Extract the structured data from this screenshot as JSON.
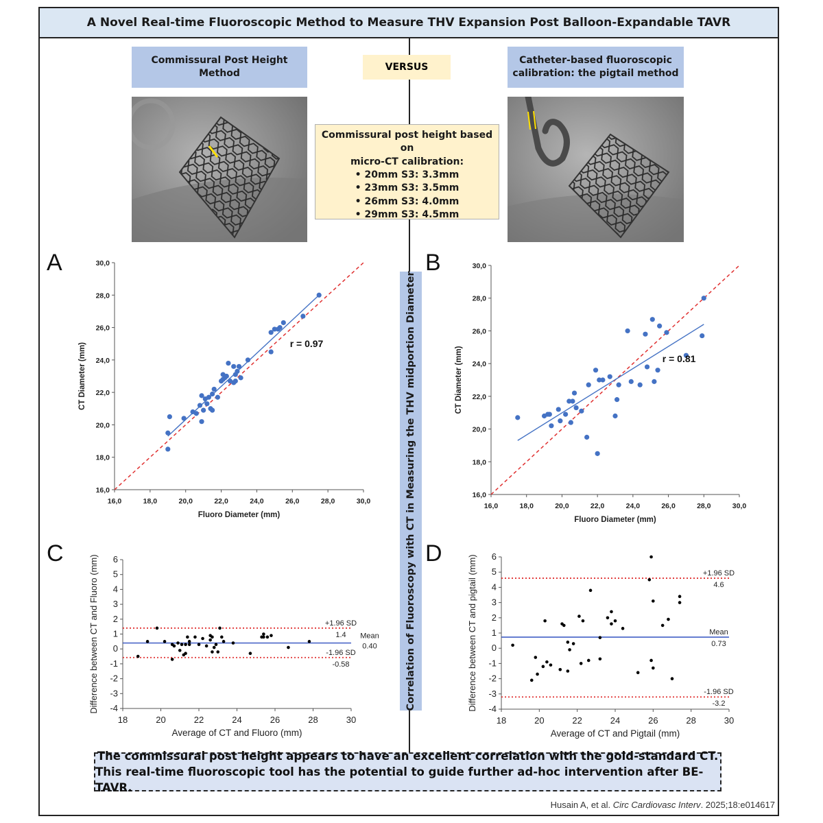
{
  "title": "A Novel Real-time Fluoroscopic Method to Measure THV Expansion Post Balloon-Expandable TAVR",
  "left_method": "Commissural Post Height Method",
  "versus": "VERSUS",
  "right_method": {
    "line1": "Catheter-based fluoroscopic",
    "line2": "calibration: the pigtail method"
  },
  "info_box": {
    "heading1": "Commissural post height based on",
    "heading2": "micro-CT calibration:",
    "items": [
      "• 20mm S3: 3.3mm",
      "• 23mm S3: 3.5mm",
      "• 26mm S3: 4.0mm",
      "• 29mm S3: 4.5mm"
    ]
  },
  "vertical_label": "Correlation of Fluoroscopy with CT in Measuring the THV midportion Diameter",
  "panel_letters": {
    "a": "A",
    "b": "B",
    "c": "C",
    "d": "D"
  },
  "conclusion": {
    "line1": "The commissural post height appears to have an excellent correlation with the gold-standard CT.",
    "line2": "This real-time fluoroscopic tool has the potential to guide further ad-hoc intervention after BE-TAVR."
  },
  "citation": {
    "authors": "Husain A, et al. ",
    "journal": "Circ Cardiovasc Interv",
    "rest": ". 2025;18:e014617"
  },
  "colors": {
    "point": "#4472c4",
    "fit": "#4472c4",
    "identity": "#e03030",
    "title_bg": "#dbe7f3",
    "method_bg": "#b4c7e7",
    "info_bg": "#fff2cc"
  },
  "chart_data": [
    {
      "id": "A",
      "type": "scatter",
      "xlabel": "Fluoro Diameter (mm)",
      "ylabel": "CT Diameter (mm)",
      "xlim": [
        16,
        30
      ],
      "ylim": [
        16,
        30
      ],
      "xticks": [
        "16,0",
        "18,0",
        "20,0",
        "22,0",
        "24,0",
        "26,0",
        "28,0",
        "30,0"
      ],
      "yticks": [
        "16,0",
        "18,0",
        "20,0",
        "22,0",
        "24,0",
        "26,0",
        "28,0",
        "30,0"
      ],
      "annotation": "r = 0.97",
      "fit_line": [
        [
          19.0,
          19.3
        ],
        [
          27.5,
          28.0
        ]
      ],
      "identity_line": true,
      "points": [
        [
          19.0,
          18.5
        ],
        [
          19.0,
          19.5
        ],
        [
          19.1,
          20.5
        ],
        [
          19.9,
          20.4
        ],
        [
          20.4,
          20.8
        ],
        [
          20.6,
          20.7
        ],
        [
          20.8,
          21.2
        ],
        [
          20.9,
          21.8
        ],
        [
          20.9,
          20.2
        ],
        [
          21.0,
          20.9
        ],
        [
          21.1,
          21.6
        ],
        [
          21.2,
          21.3
        ],
        [
          21.3,
          21.7
        ],
        [
          21.4,
          21.0
        ],
        [
          21.5,
          20.9
        ],
        [
          21.5,
          21.9
        ],
        [
          21.6,
          22.2
        ],
        [
          21.8,
          21.7
        ],
        [
          22.0,
          22.7
        ],
        [
          22.1,
          23.1
        ],
        [
          22.1,
          22.8
        ],
        [
          22.2,
          22.9
        ],
        [
          22.3,
          23.0
        ],
        [
          22.4,
          23.8
        ],
        [
          22.5,
          22.7
        ],
        [
          22.7,
          22.6
        ],
        [
          22.7,
          23.6
        ],
        [
          22.8,
          22.7
        ],
        [
          22.8,
          23.1
        ],
        [
          22.9,
          23.3
        ],
        [
          23.0,
          23.6
        ],
        [
          23.1,
          22.9
        ],
        [
          23.5,
          24.0
        ],
        [
          24.8,
          24.5
        ],
        [
          24.8,
          25.7
        ],
        [
          25.0,
          25.9
        ],
        [
          25.2,
          25.9
        ],
        [
          25.3,
          26.0
        ],
        [
          25.5,
          26.3
        ],
        [
          26.6,
          26.7
        ],
        [
          27.5,
          28.0
        ]
      ]
    },
    {
      "id": "B",
      "type": "scatter",
      "xlabel": "Fluoro Diameter (mm)",
      "ylabel": "CT Diameter (mm)",
      "xlim": [
        16,
        30
      ],
      "ylim": [
        16,
        30
      ],
      "xticks": [
        "16,0",
        "18,0",
        "20,0",
        "22,0",
        "24,0",
        "26,0",
        "28,0",
        "30,0"
      ],
      "yticks": [
        "16,0",
        "18,0",
        "20,0",
        "22,0",
        "24,0",
        "26,0",
        "28,0",
        "30,0"
      ],
      "annotation": "r = 0.81",
      "fit_line": [
        [
          17.5,
          19.3
        ],
        [
          28.0,
          26.4
        ]
      ],
      "identity_line": true,
      "points": [
        [
          17.5,
          20.7
        ],
        [
          19.0,
          20.8
        ],
        [
          19.2,
          20.9
        ],
        [
          19.3,
          20.9
        ],
        [
          19.4,
          20.2
        ],
        [
          19.8,
          21.2
        ],
        [
          19.9,
          20.5
        ],
        [
          20.2,
          20.9
        ],
        [
          20.4,
          21.7
        ],
        [
          20.5,
          20.4
        ],
        [
          20.6,
          21.7
        ],
        [
          20.7,
          22.2
        ],
        [
          20.8,
          21.3
        ],
        [
          21.1,
          21.1
        ],
        [
          21.4,
          19.5
        ],
        [
          21.5,
          22.7
        ],
        [
          21.9,
          23.6
        ],
        [
          22.0,
          18.5
        ],
        [
          22.1,
          23.0
        ],
        [
          22.3,
          23.0
        ],
        [
          22.7,
          23.2
        ],
        [
          23.0,
          20.8
        ],
        [
          23.1,
          21.8
        ],
        [
          23.2,
          22.7
        ],
        [
          23.7,
          26.0
        ],
        [
          23.9,
          22.9
        ],
        [
          24.4,
          22.7
        ],
        [
          24.7,
          25.8
        ],
        [
          24.8,
          23.8
        ],
        [
          25.1,
          26.7
        ],
        [
          25.2,
          22.9
        ],
        [
          25.4,
          23.6
        ],
        [
          25.5,
          26.3
        ],
        [
          25.9,
          25.9
        ],
        [
          27.0,
          24.5
        ],
        [
          27.9,
          25.7
        ],
        [
          28.0,
          28.0
        ]
      ]
    },
    {
      "id": "C",
      "type": "scatter",
      "xlabel": "Average of CT and Fluoro (mm)",
      "ylabel": "Difference between CT and Fluoro (mm)",
      "xlim": [
        18,
        30
      ],
      "ylim": [
        -4,
        6
      ],
      "xticks": [
        "18",
        "20",
        "22",
        "24",
        "26",
        "28",
        "30"
      ],
      "yticks": [
        "-4",
        "-3",
        "-2",
        "-1",
        "0",
        "1",
        "2",
        "3",
        "4",
        "5",
        "6"
      ],
      "mean": 0.4,
      "upper": 1.4,
      "lower": -0.58,
      "labels": {
        "upper_sd": "+1.96 SD",
        "upper_val": "1.4",
        "mean": "Mean",
        "mean_val": "0.40",
        "lower_sd": "-1.96 SD",
        "lower_val": "-0.58"
      },
      "points": [
        [
          18.8,
          -0.5
        ],
        [
          19.3,
          0.5
        ],
        [
          19.8,
          1.4
        ],
        [
          20.2,
          0.5
        ],
        [
          20.6,
          -0.7
        ],
        [
          20.6,
          0.3
        ],
        [
          20.7,
          0.2
        ],
        [
          20.9,
          0.4
        ],
        [
          21.0,
          -0.1
        ],
        [
          21.1,
          0.3
        ],
        [
          21.2,
          -0.4
        ],
        [
          21.3,
          0.3
        ],
        [
          21.3,
          -0.3
        ],
        [
          21.4,
          0.8
        ],
        [
          21.5,
          0.3
        ],
        [
          21.5,
          0.5
        ],
        [
          21.8,
          0.8
        ],
        [
          22.0,
          0.3
        ],
        [
          22.2,
          0.7
        ],
        [
          22.4,
          0.2
        ],
        [
          22.6,
          0.6
        ],
        [
          22.6,
          0.9
        ],
        [
          22.7,
          0.8
        ],
        [
          22.7,
          -0.2
        ],
        [
          22.8,
          0.1
        ],
        [
          22.9,
          0.3
        ],
        [
          23.0,
          -0.2
        ],
        [
          23.1,
          1.4
        ],
        [
          23.2,
          0.8
        ],
        [
          23.3,
          0.5
        ],
        [
          23.8,
          0.4
        ],
        [
          24.7,
          -0.3
        ],
        [
          25.3,
          0.8
        ],
        [
          25.4,
          1.0
        ],
        [
          25.4,
          0.8
        ],
        [
          25.6,
          0.8
        ],
        [
          25.8,
          0.9
        ],
        [
          26.7,
          0.1
        ],
        [
          27.8,
          0.5
        ]
      ]
    },
    {
      "id": "D",
      "type": "scatter",
      "xlabel": "Average of CT and Pigtail (mm)",
      "ylabel": "Difference between CT and pigtail (mm)",
      "xlim": [
        18,
        30
      ],
      "ylim": [
        -4,
        6
      ],
      "xticks": [
        "18",
        "20",
        "22",
        "24",
        "26",
        "28",
        "30"
      ],
      "yticks": [
        "-4",
        "-3",
        "-2",
        "-1",
        "0",
        "1",
        "2",
        "3",
        "4",
        "5",
        "6"
      ],
      "mean": 0.73,
      "upper": 4.6,
      "lower": -3.2,
      "labels": {
        "upper_sd": "+1.96 SD",
        "upper_val": "4.6",
        "mean": "Mean",
        "mean_val": "0.73",
        "lower_sd": "-1.96 SD",
        "lower_val": "-3.2"
      },
      "points": [
        [
          18.6,
          0.2
        ],
        [
          19.6,
          -2.1
        ],
        [
          19.8,
          -0.6
        ],
        [
          19.9,
          -1.7
        ],
        [
          20.2,
          -1.2
        ],
        [
          20.3,
          1.8
        ],
        [
          20.4,
          -0.9
        ],
        [
          20.6,
          -1.1
        ],
        [
          21.1,
          -1.4
        ],
        [
          21.2,
          1.6
        ],
        [
          21.3,
          1.5
        ],
        [
          21.5,
          -1.5
        ],
        [
          21.5,
          0.4
        ],
        [
          21.6,
          -0.1
        ],
        [
          21.8,
          0.3
        ],
        [
          22.1,
          2.1
        ],
        [
          22.2,
          -1.0
        ],
        [
          22.3,
          1.8
        ],
        [
          22.6,
          -0.8
        ],
        [
          22.7,
          3.8
        ],
        [
          23.2,
          0.7
        ],
        [
          23.2,
          -0.7
        ],
        [
          23.6,
          2.0
        ],
        [
          23.8,
          2.4
        ],
        [
          23.8,
          1.6
        ],
        [
          24.0,
          1.8
        ],
        [
          24.4,
          1.3
        ],
        [
          25.2,
          -1.6
        ],
        [
          25.8,
          4.5
        ],
        [
          25.9,
          6.0
        ],
        [
          25.9,
          -0.8
        ],
        [
          26.0,
          3.1
        ],
        [
          26.0,
          -1.3
        ],
        [
          26.5,
          1.5
        ],
        [
          26.8,
          1.9
        ],
        [
          27.0,
          -2.0
        ],
        [
          27.4,
          3.4
        ],
        [
          27.4,
          3.0
        ]
      ]
    }
  ]
}
